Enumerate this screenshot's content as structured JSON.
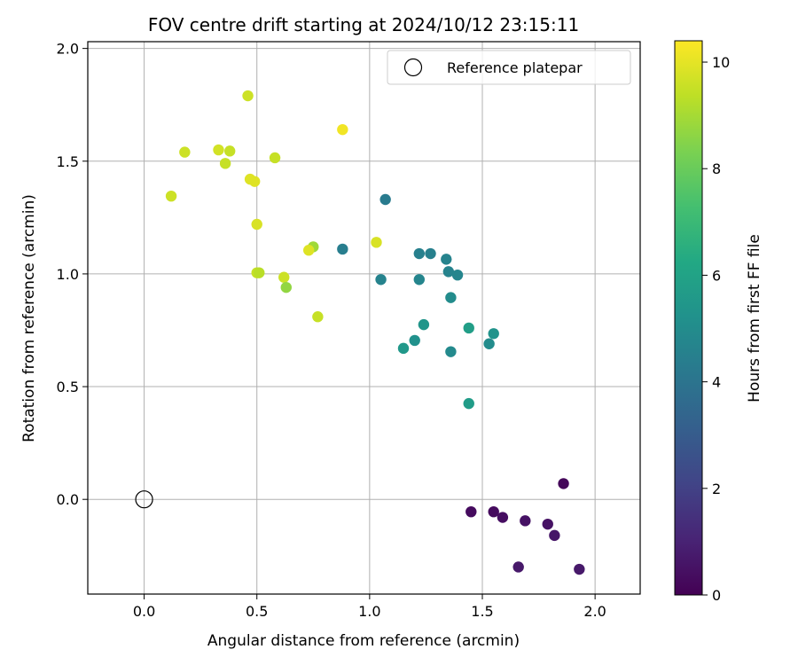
{
  "chart_data": {
    "type": "scatter",
    "title": "FOV centre drift starting at 2024/10/12 23:15:11",
    "xlabel": "Angular distance from reference (arcmin)",
    "ylabel": "Rotation from reference (arcmin)",
    "colorbar_label": "Hours from first FF file",
    "xlim": [
      -0.25,
      2.2
    ],
    "ylim": [
      -0.42,
      2.03
    ],
    "clim": [
      0,
      10.4
    ],
    "x_ticks": [
      0.0,
      0.5,
      1.0,
      1.5,
      2.0
    ],
    "x_tick_labels": [
      "0.0",
      "0.5",
      "1.0",
      "1.5",
      "2.0"
    ],
    "y_ticks": [
      0.0,
      0.5,
      1.0,
      1.5,
      2.0
    ],
    "y_tick_labels": [
      "0.0",
      "0.5",
      "1.0",
      "1.5",
      "2.0"
    ],
    "colorbar_ticks": [
      0,
      2,
      4,
      6,
      8,
      10
    ],
    "colorbar_tick_labels": [
      "0",
      "2",
      "4",
      "6",
      "8",
      "10"
    ],
    "grid": true,
    "colormap": "viridis",
    "legend": {
      "placement": "top-right",
      "entries": [
        "Reference platepar"
      ]
    },
    "reference_point": {
      "x": 0.0,
      "y": 0.0,
      "name": "Reference platepar"
    },
    "points": [
      {
        "x": 1.86,
        "y": 0.07,
        "hours": 0.2
      },
      {
        "x": 1.45,
        "y": -0.055,
        "hours": 0.3
      },
      {
        "x": 1.55,
        "y": -0.055,
        "hours": 0.3
      },
      {
        "x": 1.59,
        "y": -0.08,
        "hours": 0.4
      },
      {
        "x": 1.69,
        "y": -0.095,
        "hours": 0.5
      },
      {
        "x": 1.79,
        "y": -0.11,
        "hours": 0.5
      },
      {
        "x": 1.82,
        "y": -0.16,
        "hours": 0.6
      },
      {
        "x": 1.66,
        "y": -0.3,
        "hours": 0.7
      },
      {
        "x": 1.93,
        "y": -0.31,
        "hours": 0.7
      },
      {
        "x": 1.07,
        "y": 1.33,
        "hours": 4.3
      },
      {
        "x": 0.88,
        "y": 1.11,
        "hours": 4.4
      },
      {
        "x": 1.22,
        "y": 1.09,
        "hours": 4.5
      },
      {
        "x": 1.27,
        "y": 1.09,
        "hours": 4.5
      },
      {
        "x": 1.34,
        "y": 1.065,
        "hours": 4.6
      },
      {
        "x": 1.35,
        "y": 1.01,
        "hours": 4.6
      },
      {
        "x": 1.39,
        "y": 0.995,
        "hours": 4.7
      },
      {
        "x": 1.05,
        "y": 0.975,
        "hours": 4.6
      },
      {
        "x": 1.22,
        "y": 0.975,
        "hours": 4.7
      },
      {
        "x": 1.36,
        "y": 0.895,
        "hours": 5.0
      },
      {
        "x": 1.24,
        "y": 0.775,
        "hours": 5.4
      },
      {
        "x": 1.2,
        "y": 0.705,
        "hours": 5.2
      },
      {
        "x": 1.15,
        "y": 0.67,
        "hours": 5.5
      },
      {
        "x": 1.36,
        "y": 0.655,
        "hours": 4.9
      },
      {
        "x": 1.44,
        "y": 0.76,
        "hours": 5.8
      },
      {
        "x": 1.55,
        "y": 0.735,
        "hours": 5.3
      },
      {
        "x": 1.53,
        "y": 0.69,
        "hours": 5.0
      },
      {
        "x": 1.44,
        "y": 0.425,
        "hours": 5.7
      },
      {
        "x": 0.46,
        "y": 1.79,
        "hours": 9.6
      },
      {
        "x": 0.88,
        "y": 1.64,
        "hours": 10.2
      },
      {
        "x": 0.18,
        "y": 1.54,
        "hours": 9.6
      },
      {
        "x": 0.33,
        "y": 1.55,
        "hours": 9.7
      },
      {
        "x": 0.38,
        "y": 1.545,
        "hours": 9.5
      },
      {
        "x": 0.58,
        "y": 1.515,
        "hours": 9.5
      },
      {
        "x": 0.36,
        "y": 1.49,
        "hours": 9.5
      },
      {
        "x": 0.47,
        "y": 1.42,
        "hours": 9.9
      },
      {
        "x": 0.49,
        "y": 1.41,
        "hours": 9.9
      },
      {
        "x": 0.12,
        "y": 1.345,
        "hours": 9.6
      },
      {
        "x": 0.5,
        "y": 1.22,
        "hours": 9.8
      },
      {
        "x": 1.03,
        "y": 1.14,
        "hours": 9.8
      },
      {
        "x": 0.75,
        "y": 1.12,
        "hours": 8.9
      },
      {
        "x": 0.73,
        "y": 1.105,
        "hours": 9.9
      },
      {
        "x": 0.5,
        "y": 1.005,
        "hours": 9.5
      },
      {
        "x": 0.51,
        "y": 1.005,
        "hours": 9.3
      },
      {
        "x": 0.62,
        "y": 0.985,
        "hours": 9.6
      },
      {
        "x": 0.63,
        "y": 0.94,
        "hours": 8.7
      },
      {
        "x": 0.77,
        "y": 0.81,
        "hours": 9.5
      }
    ]
  }
}
